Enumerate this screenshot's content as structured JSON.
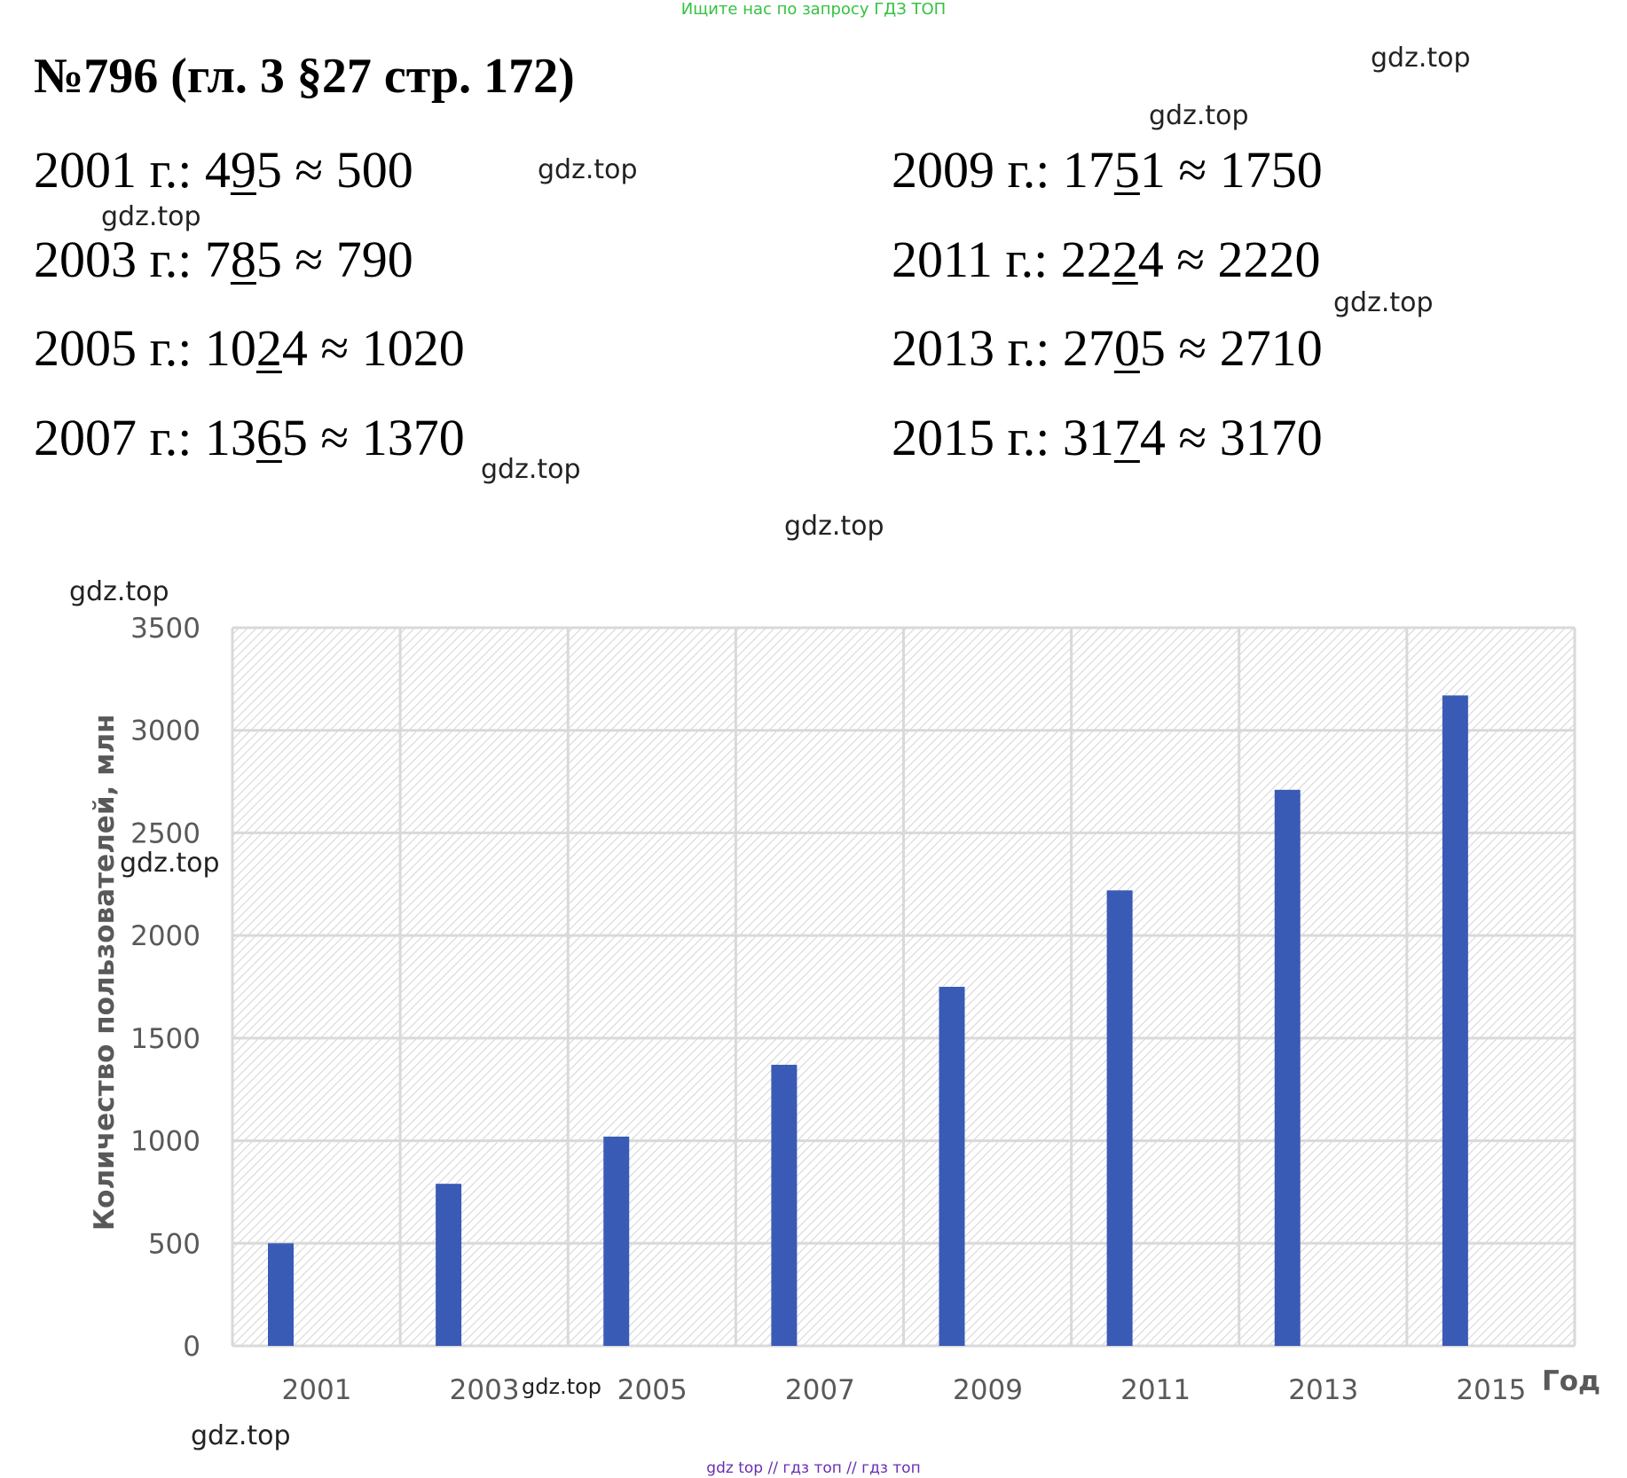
{
  "header": {
    "banner": "Ищите нас по запросу ГДЗ ТОП",
    "title": "№796 (гл. 3 §27 стр. 172)"
  },
  "items": [
    {
      "year": "2001 г.: ",
      "pre": "4",
      "u": "9",
      "post": "5",
      "approx": " ≈ 500"
    },
    {
      "year": "2003 г.: ",
      "pre": "7",
      "u": "8",
      "post": "5",
      "approx": " ≈ 790"
    },
    {
      "year": "2005 г.: ",
      "pre": "10",
      "u": "2",
      "post": "4",
      "approx": " ≈ 1020"
    },
    {
      "year": "2007 г.: ",
      "pre": "13",
      "u": "6",
      "post": "5",
      "approx": " ≈ 1370"
    },
    {
      "year": "2009 г.: ",
      "pre": "17",
      "u": "5",
      "post": "1",
      "approx": " ≈ 1750"
    },
    {
      "year": "2011 г.: ",
      "pre": "22",
      "u": "2",
      "post": "4",
      "approx": " ≈ 2220"
    },
    {
      "year": "2013 г.: ",
      "pre": "27",
      "u": "0",
      "post": "5",
      "approx": " ≈ 2710"
    },
    {
      "year": "2015 г.: ",
      "pre": "31",
      "u": "7",
      "post": "4",
      "approx": " ≈ 3170"
    }
  ],
  "watermark": "gdz.top",
  "footer": "gdz top  //  гдз топ  //  гдз топ",
  "chart_data": {
    "type": "bar",
    "categories": [
      "2001",
      "2003",
      "2005",
      "2007",
      "2009",
      "2011",
      "2013",
      "2015"
    ],
    "values": [
      500,
      790,
      1020,
      1370,
      1750,
      2220,
      2710,
      3170
    ],
    "title": "",
    "xlabel": "Год",
    "ylabel": "Количество пользователей, млн",
    "ylim": [
      0,
      3500
    ],
    "yticks": [
      0,
      500,
      1000,
      1500,
      2000,
      2500,
      3000,
      3500
    ],
    "grid": true,
    "legend": "none",
    "bar_color": "#3a5bb5",
    "grid_color": "#d9d9d9"
  }
}
